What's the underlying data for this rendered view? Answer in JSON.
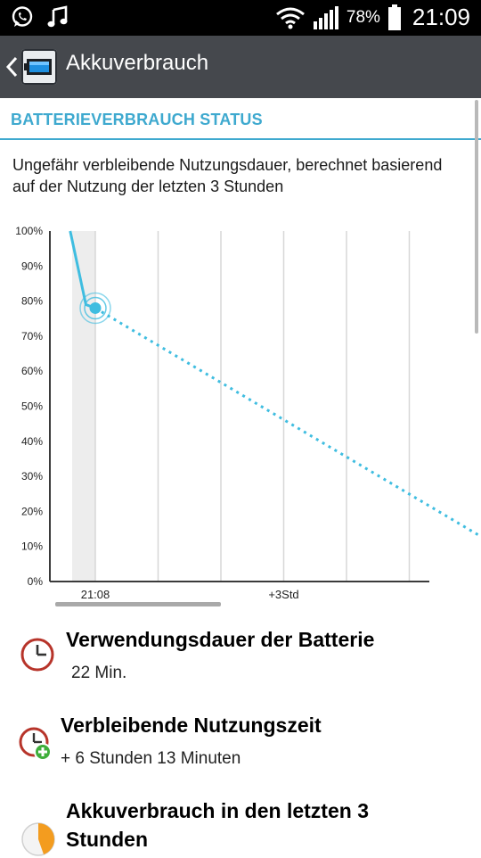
{
  "status_bar": {
    "icons": [
      "whatsapp-icon",
      "music-note-icon",
      "wifi-icon",
      "signal-icon",
      "battery-icon"
    ],
    "battery_percent": "78%",
    "time": "21:09"
  },
  "header": {
    "title": "Akkuverbrauch"
  },
  "section": {
    "title": "BATTERIEVERBRAUCH STATUS",
    "description": "Ungefähr verbleibende Nutzungsdauer, berechnet basierend auf der Nutzung der letzten 3 Stunden"
  },
  "chart_data": {
    "type": "line",
    "title": "",
    "xlabel": "",
    "ylabel": "",
    "x_tick_labels": [
      "21:08",
      "+3Std"
    ],
    "y_tick_labels": [
      "100%",
      "90%",
      "80%",
      "70%",
      "60%",
      "50%",
      "40%",
      "30%",
      "20%",
      "10%",
      "0%"
    ],
    "ylim": [
      0,
      100
    ],
    "series": [
      {
        "style": "solid",
        "points": [
          [
            -0.4,
            100
          ],
          [
            -0.15,
            79
          ],
          [
            0,
            78
          ]
        ]
      },
      {
        "style": "dotted",
        "points": [
          [
            0,
            78
          ],
          [
            6.22,
            12
          ]
        ]
      }
    ],
    "current_point": [
      0,
      78
    ],
    "colors": {
      "line": "#3fbde0",
      "grid": "#d7d7d7",
      "axis": "#3b3b3b"
    }
  },
  "items": [
    {
      "icon": "clock-icon",
      "title": "Verwendungsdauer der Batterie",
      "value": "22 Min."
    },
    {
      "icon": "clock-plus-icon",
      "title": "Verbleibende Nutzungszeit",
      "value": "+ 6 Stunden 13 Minuten"
    },
    {
      "icon": "pie-chart-icon",
      "title_line1": "Akkuverbrauch in den letzten 3",
      "title_line2": "Stunden"
    }
  ]
}
